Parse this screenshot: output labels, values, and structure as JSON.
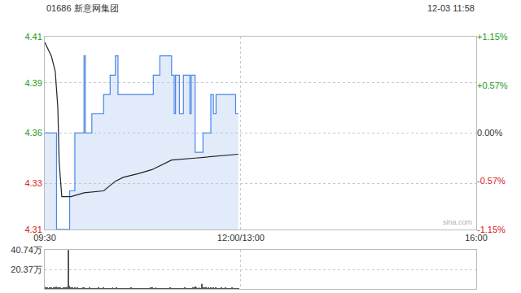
{
  "chart_data": [
    {
      "type": "line",
      "title": "01686 新意网集团",
      "subtitle": "12-03 11:58",
      "annotations": [
        "sina.com"
      ],
      "xlim": [
        0,
        330
      ],
      "xticks": [
        {
          "value": 0,
          "label": "09:30"
        },
        {
          "value": 150,
          "label": "12:00/13:00"
        },
        {
          "value": 330,
          "label": "16:00"
        }
      ],
      "ylim": [
        4.31,
        4.41
      ],
      "yticks": [
        4.31,
        {
          "value": 4.334,
          "label": "4.33"
        },
        4.36,
        {
          "value": 4.386,
          "label": "4.39"
        },
        4.41
      ],
      "y2lim": [
        -1.15,
        1.15
      ],
      "y2ticks": [
        {
          "value": -1.15,
          "label": "-1.15%"
        },
        {
          "value": -0.57,
          "label": "-0.57%"
        },
        {
          "value": 0,
          "label": "0.00%"
        },
        {
          "value": 0.57,
          "label": "+0.57%"
        },
        {
          "value": 1.15,
          "label": "+1.15%"
        }
      ],
      "grid": true,
      "series": [
        {
          "type": "area",
          "color": "#4a86e8",
          "line_style": "step",
          "x": [
            0,
            9,
            19,
            23,
            30,
            31,
            36,
            45,
            50,
            54,
            56,
            83,
            88,
            97,
            99,
            100,
            103,
            106,
            111,
            112,
            115,
            121,
            127,
            129,
            131,
            146,
            148
          ],
          "values": [
            4.36,
            4.31,
            4.33,
            4.36,
            4.4,
            4.36,
            4.37,
            4.38,
            4.39,
            4.4,
            4.38,
            4.39,
            4.4,
            4.39,
            4.37,
            4.39,
            4.37,
            4.39,
            4.37,
            4.39,
            4.35,
            4.36,
            4.38,
            4.37,
            4.38,
            4.37,
            4.37
          ]
        },
        {
          "type": "line",
          "color": "#222222",
          "line_style": "solid",
          "x": [
            0,
            5,
            8,
            10,
            11,
            13,
            20,
            30,
            45,
            54,
            60,
            72,
            82,
            97,
            115,
            130,
            148
          ],
          "values": [
            4.407,
            4.4,
            4.392,
            4.373,
            4.345,
            4.327,
            4.327,
            4.329,
            4.33,
            4.335,
            4.337,
            4.339,
            4.341,
            4.346,
            4.347,
            4.348,
            4.349
          ]
        }
      ]
    },
    {
      "type": "bar",
      "xlim": [
        0,
        330
      ],
      "xticks": [
        {
          "value": 0,
          "label": "09:30"
        },
        {
          "value": 150,
          "label": "12:00/13:00"
        },
        {
          "value": 330,
          "label": "16:00"
        }
      ],
      "ylim": [
        0,
        40.74
      ],
      "yticks": [
        0,
        {
          "value": 20.37,
          "label": "20.37万"
        },
        {
          "value": 40.74,
          "label": "40.74万"
        }
      ],
      "tick_labels": "y",
      "grid": true,
      "color": "#555555",
      "values": [
        2.1,
        1.2,
        0.8,
        0.6,
        1.5,
        0.9,
        0.7,
        1.8,
        1.1,
        2.4,
        1.6,
        0.9,
        1.3,
        0.7,
        1.0,
        0.8,
        1.2,
        1.9,
        40.5,
        3.2,
        1.4,
        0.8,
        0.6,
        1.1,
        0.5,
        0.9,
        0.4,
        0.7,
        0.6,
        1.2,
        0.8,
        0.5,
        0.3,
        0.6,
        0.9,
        0.4,
        0.7,
        0.5,
        0.3,
        0.6,
        0.4,
        0.8,
        0.5,
        0.3,
        0.6,
        0.9,
        0.4,
        0.5,
        0.7,
        0.3,
        0.6,
        0.4,
        1.1,
        0.5,
        0.3,
        0.8,
        0.4,
        0.6,
        0.3,
        0.5,
        0.7,
        0.4,
        0.3,
        0.6,
        0.5,
        0.4,
        0.8,
        0.3,
        0.5,
        0.4,
        0.3,
        0.6,
        0.4,
        0.5,
        0.3,
        0.7,
        0.4,
        0.3,
        0.5,
        0.6,
        0.4,
        0.8,
        1.2,
        0.6,
        0.5,
        0.9,
        0.4,
        0.3,
        0.6,
        0.5,
        0.4,
        0.7,
        0.3,
        0.5,
        0.6,
        0.4,
        0.8,
        0.5,
        0.3,
        0.6,
        0.4,
        0.5,
        0.7,
        0.3,
        0.6,
        0.4,
        0.5,
        0.9,
        0.4,
        0.6,
        0.5,
        0.7,
        0.4,
        0.8,
        1.3,
        2.6,
        1.1,
        0.6,
        0.9,
        0.5,
        5.2,
        1.4,
        0.8,
        1.9,
        0.7,
        1.2,
        0.6,
        1.0,
        0.5,
        0.8,
        0.6,
        0.9,
        0.4,
        0.7,
        0.5,
        0.8,
        0.4,
        0.6,
        1.1,
        0.5,
        0.7,
        0.4,
        0.6,
        0.9,
        0.5,
        0.3,
        0.7,
        0.4,
        0.6
      ]
    }
  ]
}
